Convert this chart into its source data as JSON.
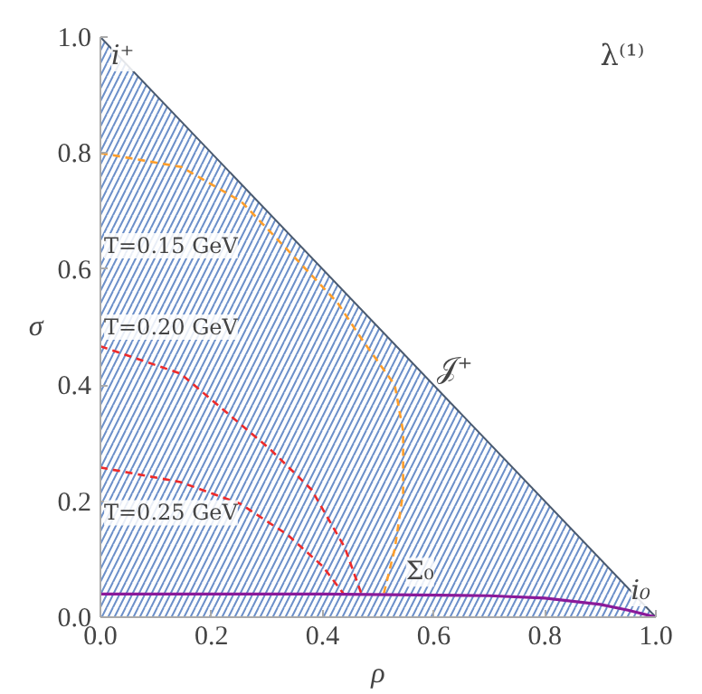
{
  "chart_data": {
    "type": "line",
    "xlabel": "ρ",
    "ylabel": "σ",
    "xlim": [
      0,
      1
    ],
    "ylim": [
      0,
      1
    ],
    "xticks": [
      {
        "value": 0,
        "label": "0.0"
      },
      0.2,
      0.4,
      0.6,
      0.8,
      {
        "value": 1,
        "label": "1.0"
      }
    ],
    "yticks": [
      {
        "value": 0,
        "label": "0.0"
      },
      0.2,
      0.4,
      0.6,
      0.8,
      {
        "value": 1,
        "label": "1.0"
      }
    ],
    "grid": false,
    "series": [
      {
        "type": "area",
        "color": "#6b8fc9",
        "x": [
          0,
          1
        ],
        "values": [
          1,
          0
        ]
      },
      {
        "color": "#ff9e2a",
        "line_style": "dashed",
        "x": [
          0,
          0.146,
          0.254,
          0.34,
          0.427,
          0.47,
          0.53,
          0.545,
          0.545,
          0.53,
          0.51
        ],
        "values": [
          0.8,
          0.776,
          0.716,
          0.63,
          0.542,
          0.48,
          0.4,
          0.32,
          0.215,
          0.118,
          0.04
        ]
      },
      {
        "color": "#ee2a2a",
        "line_style": "dashed",
        "x": [
          0,
          0.144,
          0.305,
          0.38,
          0.44,
          0.47
        ],
        "values": [
          0.467,
          0.42,
          0.29,
          0.22,
          0.12,
          0.04
        ]
      },
      {
        "color": "#ee2a2a",
        "line_style": "dashed",
        "x": [
          0,
          0.144,
          0.251,
          0.337,
          0.4,
          0.438
        ],
        "values": [
          0.258,
          0.233,
          0.196,
          0.142,
          0.088,
          0.04
        ]
      },
      {
        "color": "#8a1a9a",
        "line_style": "solid",
        "x": [
          0,
          0.4,
          0.7,
          0.8,
          0.9,
          0.95,
          1
        ],
        "values": [
          0.04,
          0.04,
          0.037,
          0.033,
          0.022,
          0.012,
          0
        ]
      }
    ],
    "annotations": [
      {
        "text": "i⁺",
        "x": 0,
        "y": 1
      },
      {
        "text": "λ⁽¹⁾"
      },
      {
        "text": "𝒥⁺",
        "x": 0.6,
        "y": 0.4
      },
      {
        "text": "Σ₀",
        "x": 0.55,
        "y": 0.04
      },
      {
        "text": "i₀",
        "x": 1,
        "y": 0
      },
      {
        "text": "T=0.15 GeV",
        "x": 0,
        "y": 0.64
      },
      {
        "text": "T=0.20 GeV",
        "x": 0,
        "y": 0.5
      },
      {
        "text": "T=0.25 GeV",
        "x": 0,
        "y": 0.18
      }
    ]
  }
}
